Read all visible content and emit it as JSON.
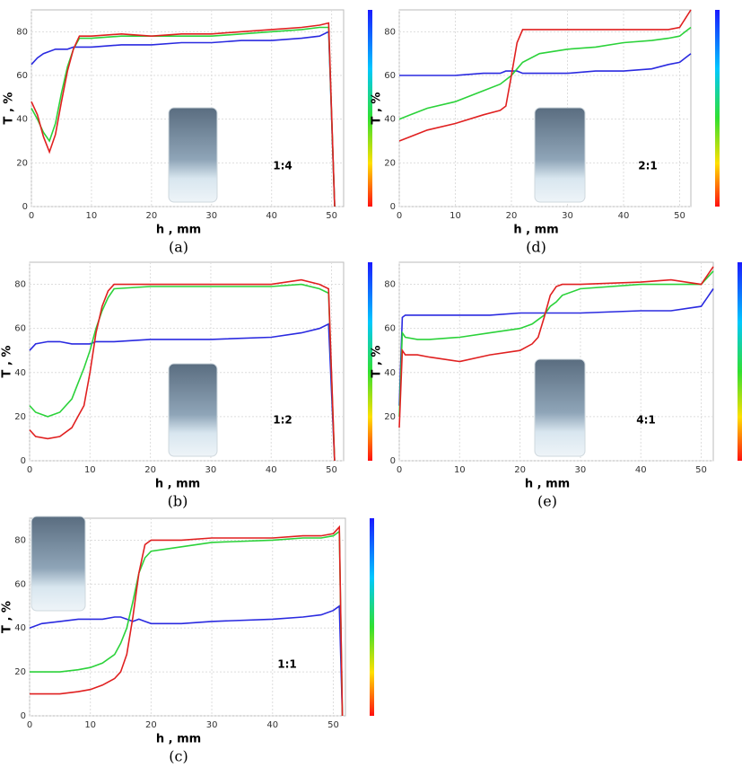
{
  "chart_data": [
    {
      "type": "line",
      "panel_label": "(a)",
      "annotation": "1:4",
      "x_label": "h , mm",
      "y_label": "T , %",
      "xlim": [
        0,
        52
      ],
      "ylim": [
        0,
        90
      ],
      "xticks": [
        0,
        10,
        20,
        30,
        40,
        50
      ],
      "yticks": [
        0,
        20,
        40,
        60,
        80
      ],
      "grid": true,
      "x": [
        0,
        1,
        2,
        3,
        4,
        5,
        6,
        7,
        8,
        10,
        15,
        20,
        25,
        30,
        35,
        40,
        45,
        48,
        49.5,
        50.5
      ],
      "series": [
        {
          "color": "#2a2ae0",
          "values": [
            65,
            68,
            70,
            71,
            72,
            72,
            72,
            73,
            73,
            73,
            74,
            74,
            75,
            75,
            76,
            76,
            77,
            78,
            80,
            0
          ]
        },
        {
          "color": "#2bd23a",
          "values": [
            45,
            40,
            34,
            30,
            38,
            52,
            64,
            72,
            77,
            77,
            78,
            78,
            78,
            78,
            79,
            80,
            81,
            82,
            82,
            0
          ]
        },
        {
          "color": "#e02020",
          "values": [
            48,
            42,
            32,
            25,
            33,
            48,
            62,
            72,
            78,
            78,
            79,
            78,
            79,
            79,
            80,
            81,
            82,
            83,
            84,
            0
          ]
        }
      ]
    },
    {
      "type": "line",
      "panel_label": "(d)",
      "annotation": "2:1",
      "x_label": "h , mm",
      "y_label": "T , %",
      "xlim": [
        0,
        52
      ],
      "ylim": [
        0,
        90
      ],
      "xticks": [
        0,
        10,
        20,
        30,
        40,
        50
      ],
      "yticks": [
        0,
        20,
        40,
        60,
        80
      ],
      "grid": true,
      "x": [
        0,
        2,
        5,
        10,
        15,
        18,
        19,
        20,
        21,
        22,
        25,
        30,
        35,
        40,
        45,
        48,
        50,
        51,
        52
      ],
      "series": [
        {
          "color": "#2a2ae0",
          "values": [
            60,
            60,
            60,
            60,
            61,
            61,
            62,
            62,
            62,
            61,
            61,
            61,
            62,
            62,
            63,
            65,
            66,
            68,
            70
          ]
        },
        {
          "color": "#2bd23a",
          "values": [
            40,
            42,
            45,
            48,
            53,
            56,
            58,
            60,
            63,
            66,
            70,
            72,
            73,
            75,
            76,
            77,
            78,
            80,
            82
          ]
        },
        {
          "color": "#e02020",
          "values": [
            30,
            32,
            35,
            38,
            42,
            44,
            46,
            60,
            75,
            81,
            81,
            81,
            81,
            81,
            81,
            81,
            82,
            86,
            90
          ]
        }
      ]
    },
    {
      "type": "line",
      "panel_label": "(b)",
      "annotation": "1:2",
      "x_label": "h , mm",
      "y_label": "T , %",
      "xlim": [
        0,
        52
      ],
      "ylim": [
        0,
        90
      ],
      "xticks": [
        0,
        10,
        20,
        30,
        40,
        50
      ],
      "yticks": [
        0,
        20,
        40,
        60,
        80
      ],
      "grid": true,
      "x": [
        0,
        1,
        3,
        5,
        7,
        8,
        9,
        10,
        11,
        12,
        13,
        14,
        20,
        30,
        40,
        45,
        48,
        49.5,
        50.5
      ],
      "series": [
        {
          "color": "#2a2ae0",
          "values": [
            50,
            53,
            54,
            54,
            53,
            53,
            53,
            53,
            54,
            54,
            54,
            54,
            55,
            55,
            56,
            58,
            60,
            62,
            0
          ]
        },
        {
          "color": "#2bd23a",
          "values": [
            25,
            22,
            20,
            22,
            28,
            35,
            42,
            50,
            60,
            68,
            74,
            78,
            79,
            79,
            79,
            80,
            78,
            76,
            0
          ]
        },
        {
          "color": "#e02020",
          "values": [
            14,
            11,
            10,
            11,
            15,
            20,
            25,
            40,
            58,
            70,
            77,
            80,
            80,
            80,
            80,
            82,
            80,
            78,
            0
          ]
        }
      ]
    },
    {
      "type": "line",
      "panel_label": "(e)",
      "annotation": "4:1",
      "x_label": "h , mm",
      "y_label": "T , %",
      "xlim": [
        0,
        52
      ],
      "ylim": [
        0,
        90
      ],
      "xticks": [
        0,
        10,
        20,
        30,
        40,
        50
      ],
      "yticks": [
        0,
        20,
        40,
        60,
        80
      ],
      "grid": true,
      "x": [
        0,
        0.5,
        1,
        3,
        5,
        10,
        15,
        20,
        22,
        23,
        24,
        25,
        26,
        27,
        30,
        40,
        45,
        50,
        51,
        52
      ],
      "series": [
        {
          "color": "#2a2ae0",
          "values": [
            25,
            65,
            66,
            66,
            66,
            66,
            66,
            67,
            67,
            67,
            67,
            67,
            67,
            67,
            67,
            68,
            68,
            70,
            74,
            78
          ]
        },
        {
          "color": "#2bd23a",
          "values": [
            20,
            58,
            56,
            55,
            55,
            56,
            58,
            60,
            62,
            64,
            66,
            70,
            72,
            75,
            78,
            80,
            80,
            80,
            83,
            86
          ]
        },
        {
          "color": "#e02020",
          "values": [
            15,
            50,
            48,
            48,
            47,
            45,
            48,
            50,
            53,
            56,
            65,
            75,
            79,
            80,
            80,
            81,
            82,
            80,
            84,
            88
          ]
        }
      ]
    },
    {
      "type": "line",
      "panel_label": "(c)",
      "annotation": "1:1",
      "x_label": "h , mm",
      "y_label": "T , %",
      "xlim": [
        0,
        52
      ],
      "ylim": [
        0,
        90
      ],
      "xticks": [
        0,
        10,
        20,
        30,
        40,
        50
      ],
      "yticks": [
        0,
        20,
        40,
        60,
        80
      ],
      "grid": true,
      "x": [
        0,
        2,
        5,
        8,
        10,
        12,
        14,
        15,
        16,
        17,
        18,
        19,
        20,
        25,
        30,
        40,
        45,
        48,
        50,
        51,
        51.5
      ],
      "series": [
        {
          "color": "#2a2ae0",
          "values": [
            40,
            42,
            43,
            44,
            44,
            44,
            45,
            45,
            44,
            43,
            44,
            43,
            42,
            42,
            43,
            44,
            45,
            46,
            48,
            50,
            0
          ]
        },
        {
          "color": "#2bd23a",
          "values": [
            20,
            20,
            20,
            21,
            22,
            24,
            28,
            33,
            40,
            52,
            65,
            72,
            75,
            77,
            79,
            80,
            81,
            81,
            82,
            84,
            0
          ]
        },
        {
          "color": "#e02020",
          "values": [
            10,
            10,
            10,
            11,
            12,
            14,
            17,
            20,
            28,
            45,
            65,
            78,
            80,
            80,
            81,
            81,
            82,
            82,
            83,
            86,
            0
          ]
        }
      ]
    }
  ]
}
